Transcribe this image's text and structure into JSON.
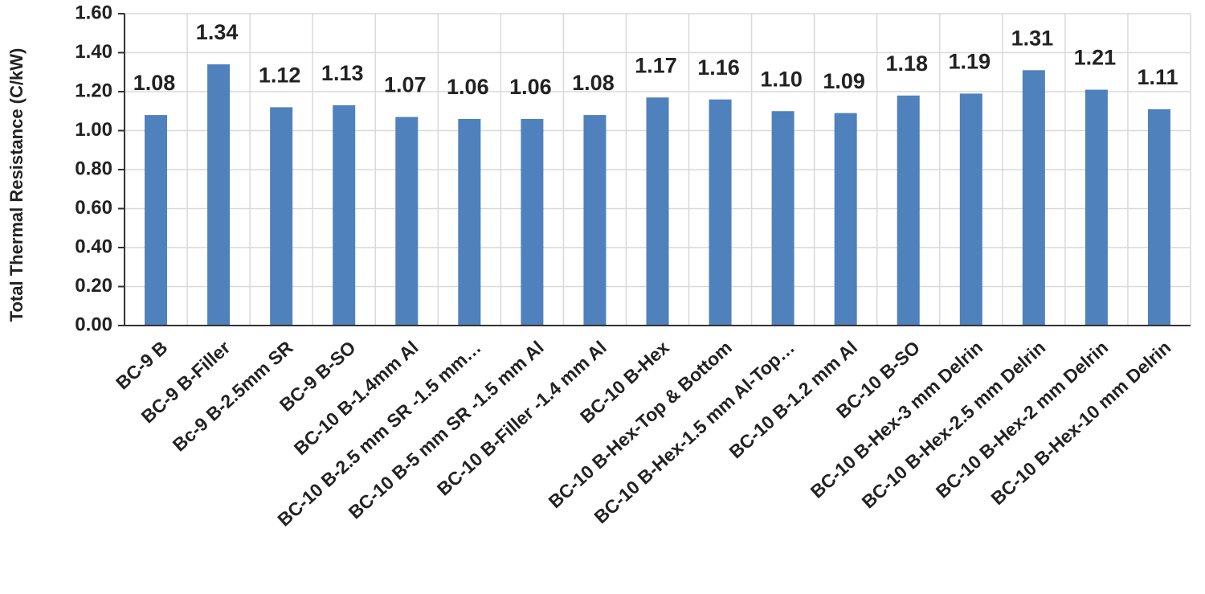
{
  "chart_data": {
    "type": "bar",
    "y_axis_label": "Total Thermal Resistance (C/kW)",
    "categories": [
      "BC-9 B",
      "BC-9 B-Filler",
      "Bc-9 B-2.5mm SR",
      "BC-9 B-SO",
      "BC-10 B-1.4mm Al",
      "BC-10 B-2.5 mm SR -1.5 mm…",
      "BC-10 B-5 mm SR -1.5 mm Al",
      "BC-10 B-Filler -1.4 mm Al",
      "BC-10 B-Hex",
      "BC-10 B-Hex-Top & Bottom",
      "BC-10 B-Hex-1.5 mm Al-Top…",
      "BC-10 B-1.2 mm Al",
      "BC-10 B-SO",
      "BC-10 B-Hex-3 mm Delrin",
      "BC-10 B-Hex-2.5 mm Delrin",
      "BC-10 B-Hex-2 mm Delrin",
      "BC-10 B-Hex-10 mm Delrin"
    ],
    "values": [
      1.08,
      1.34,
      1.12,
      1.13,
      1.07,
      1.06,
      1.06,
      1.08,
      1.17,
      1.16,
      1.1,
      1.09,
      1.18,
      1.19,
      1.31,
      1.21,
      1.11
    ],
    "value_labels": [
      "1.08",
      "1.34",
      "1.12",
      "1.13",
      "1.07",
      "1.06",
      "1.06",
      "1.08",
      "1.17",
      "1.16",
      "1.10",
      "1.09",
      "1.18",
      "1.19",
      "1.31",
      "1.21",
      "1.11"
    ],
    "color": "#4f81bd",
    "ylim": [
      0,
      1.6
    ],
    "yticks": [
      {
        "value": 0,
        "label": "0.00"
      },
      {
        "value": 0.2,
        "label": "0.20"
      },
      {
        "value": 0.4,
        "label": "0.40"
      },
      {
        "value": 0.6,
        "label": "0.60"
      },
      {
        "value": 0.8,
        "label": "0.80"
      },
      {
        "value": 1,
        "label": "1.00"
      },
      {
        "value": 1.2,
        "label": "1.20"
      },
      {
        "value": 1.4,
        "label": "1.40"
      },
      {
        "value": 1.6,
        "label": "1.60"
      }
    ],
    "grid": true
  }
}
